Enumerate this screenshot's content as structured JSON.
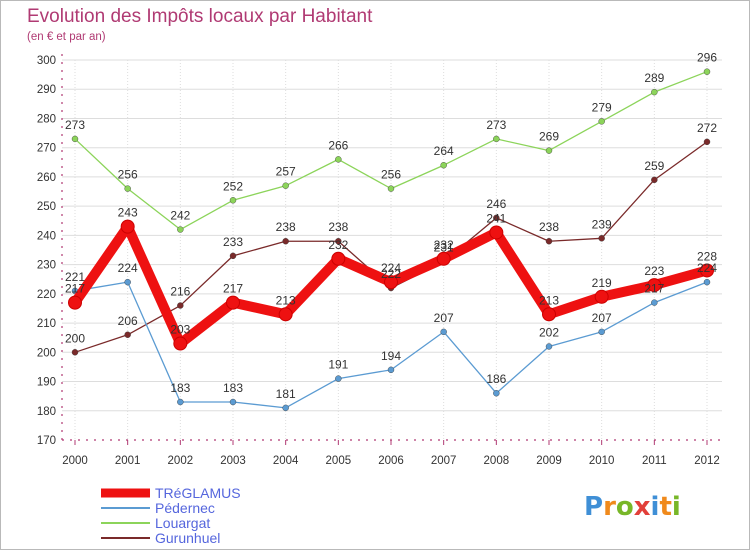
{
  "header": {
    "title": "Evolution des Impôts locaux par Habitant",
    "subtitle": "(en € et par an)"
  },
  "logo": {
    "text": "Proxiti",
    "colors": [
      "#3f8fd6",
      "#f08a1c",
      "#78b728",
      "#e2403a",
      "#3f8fd6",
      "#f08a1c",
      "#78b728"
    ]
  },
  "chart_data": {
    "type": "line",
    "title": "Evolution des Impôts locaux par Habitant",
    "subtitle": "(en € et par an)",
    "x": [
      "2000",
      "2001",
      "2002",
      "2003",
      "2004",
      "2005",
      "2006",
      "2007",
      "2008",
      "2009",
      "2010",
      "2011",
      "2012"
    ],
    "ylim": [
      170,
      300
    ],
    "yticks": [
      170,
      180,
      190,
      200,
      210,
      220,
      230,
      240,
      250,
      260,
      270,
      280,
      290,
      300
    ],
    "grid": true,
    "legend_position": "bottom-left",
    "series": [
      {
        "name": "TRéGLAMUS",
        "color": "#ee1111",
        "values": [
          217,
          243,
          203,
          217,
          213,
          232,
          224,
          232,
          241,
          213,
          219,
          223,
          228
        ],
        "labels": [
          "217",
          "243",
          "203",
          "217",
          "213",
          "232",
          "224",
          "232",
          "241",
          "213",
          "219",
          "223",
          "228"
        ]
      },
      {
        "name": "Pédernec",
        "color": "#5b9bd2",
        "values": [
          221,
          224,
          183,
          183,
          181,
          191,
          194,
          207,
          186,
          202,
          207,
          217,
          224
        ],
        "labels": [
          "221",
          "224",
          "183",
          "183",
          "181",
          "191",
          "194",
          "207",
          "186",
          "202",
          "207",
          "217",
          "224"
        ]
      },
      {
        "name": "Louargat",
        "color": "#8cd45a",
        "values": [
          273,
          256,
          242,
          252,
          257,
          266,
          256,
          264,
          273,
          269,
          279,
          289,
          296
        ],
        "labels": [
          "273",
          "256",
          "242",
          "252",
          "257",
          "266",
          "256",
          "264",
          "273",
          "269",
          "279",
          "289",
          "296"
        ]
      },
      {
        "name": "Gurunhuel",
        "color": "#7a2a2a",
        "values": [
          200,
          206,
          216,
          233,
          238,
          238,
          222,
          231,
          246,
          238,
          239,
          259,
          272
        ],
        "labels": [
          "200",
          "206",
          "216",
          "233",
          "238",
          "238",
          "222",
          "231",
          "246",
          "238",
          "239",
          "259",
          "272"
        ]
      }
    ]
  }
}
